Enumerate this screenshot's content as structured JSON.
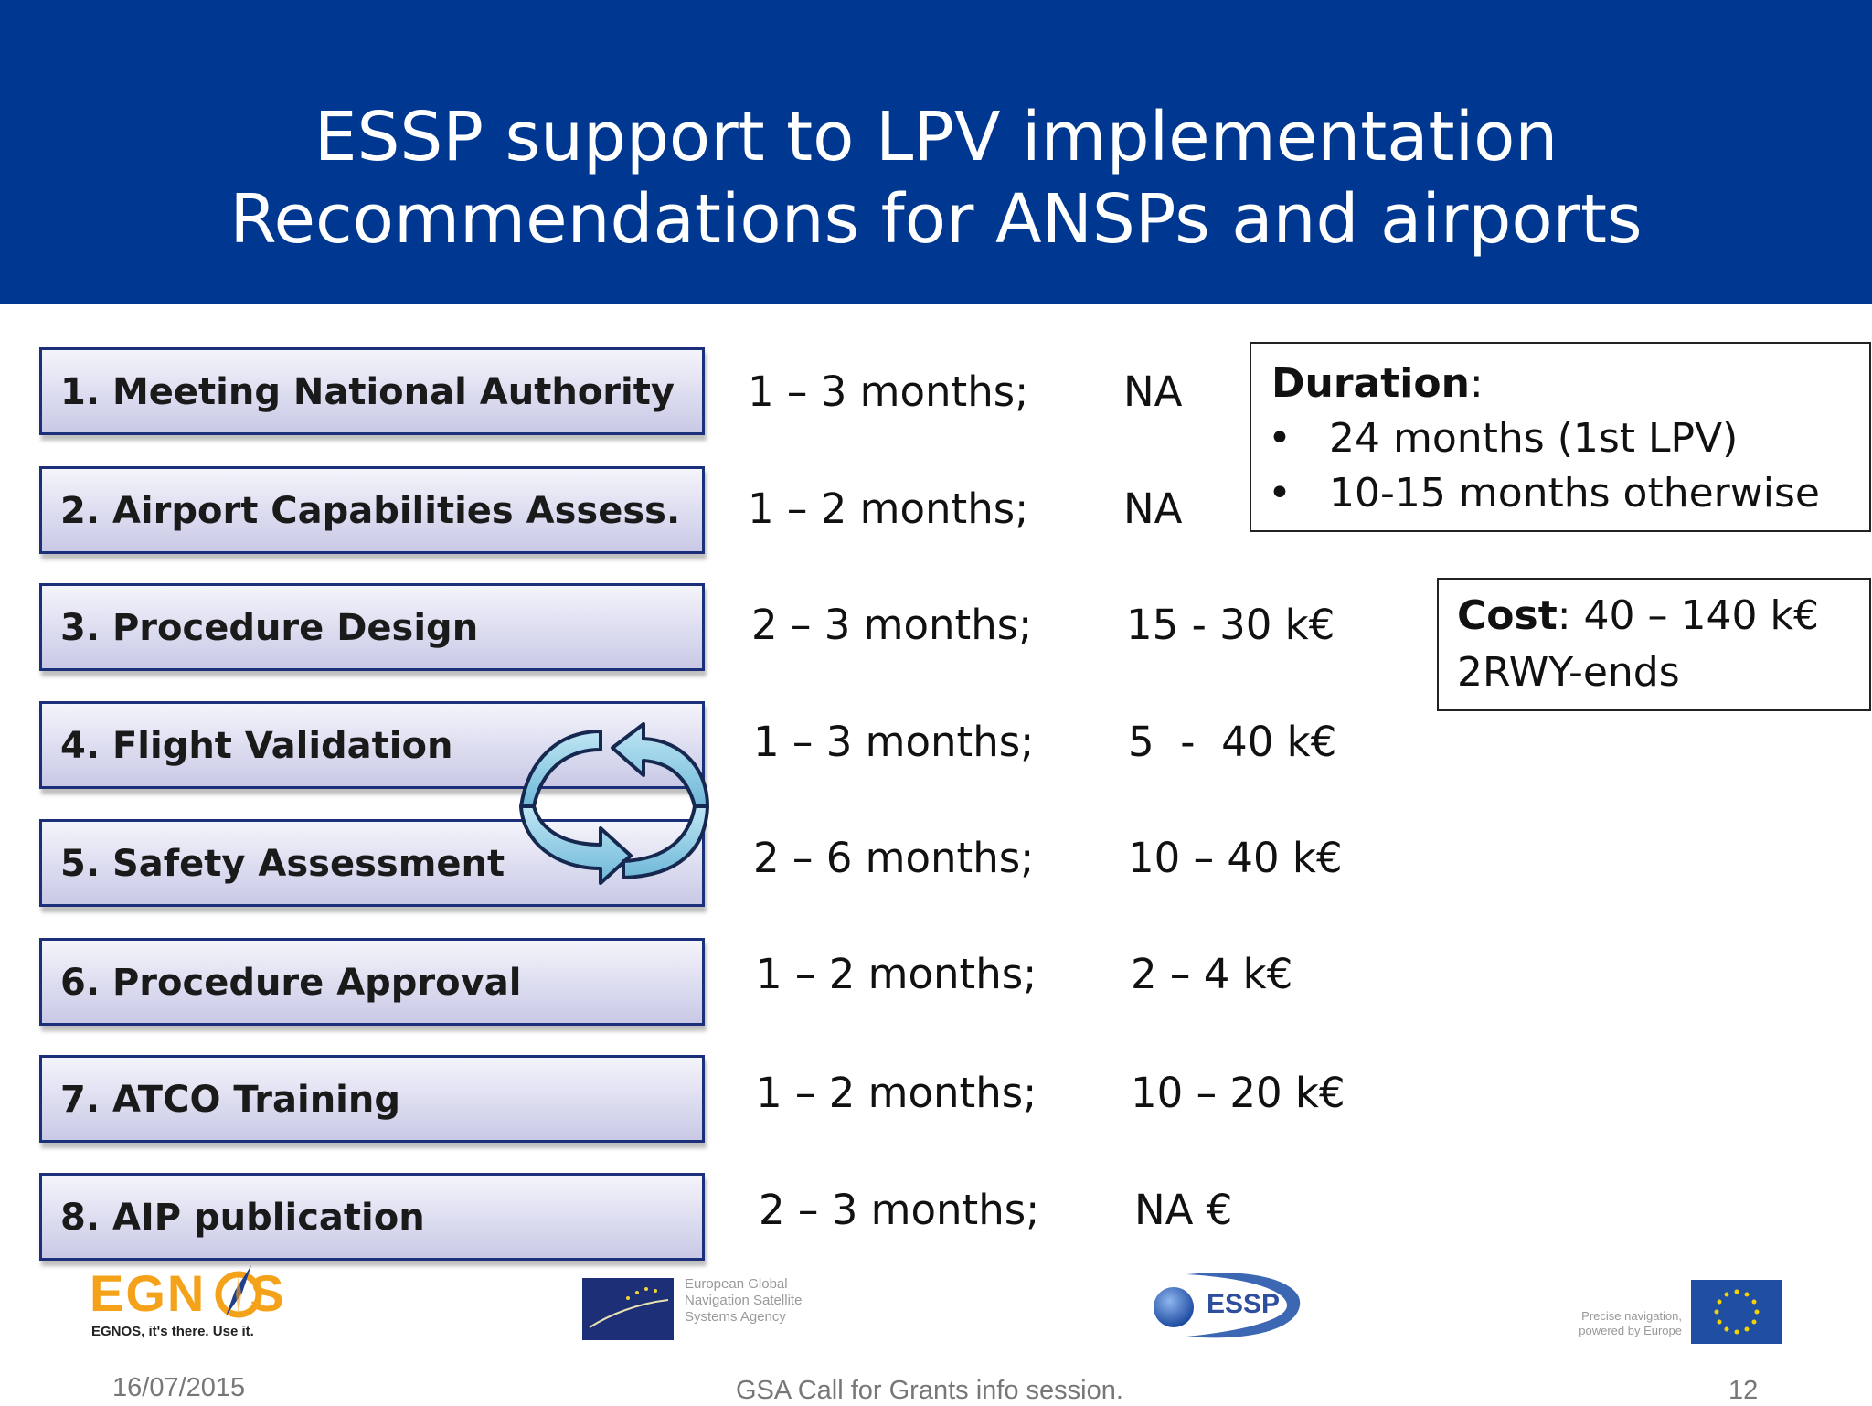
{
  "slide": {
    "title_line1": "ESSP support to LPV implementation",
    "title_line2": "Recommendations for ANSPs and airports"
  },
  "steps": [
    {
      "label": "1. Meeting National Authority",
      "duration": "1 – 3 months;",
      "cost": "NA"
    },
    {
      "label": "2. Airport Capabilities Assess.",
      "duration": "1 – 2 months;",
      "cost": "NA"
    },
    {
      "label": "3. Procedure Design",
      "duration": "2 – 3 months;",
      "cost": "15 - 30 k€"
    },
    {
      "label": "4. Flight Validation",
      "duration": "1 – 3 months;",
      "cost": "5  -  40 k€"
    },
    {
      "label": "5. Safety Assessment",
      "duration": "2 – 6 months;",
      "cost": "10 – 40 k€"
    },
    {
      "label": "6. Procedure Approval",
      "duration": "1 – 2 months;",
      "cost": "2 – 4 k€"
    },
    {
      "label": "7. ATCO Training",
      "duration": "1 – 2 months;",
      "cost": "10 – 20 k€"
    },
    {
      "label": "8. AIP publication",
      "duration": "2 – 3 months;",
      "cost": "NA €"
    }
  ],
  "duration_box": {
    "heading": "Duration",
    "items": [
      "24 months (1st LPV)",
      "10-15 months otherwise"
    ]
  },
  "cost_box": {
    "heading": "Cost",
    "value": ": 40 – 140 k€",
    "line2": "2RWY-ends"
  },
  "logos": {
    "egnos_name": "EGNOS",
    "egnos_tagline": "EGNOS, it's there. Use it.",
    "gsa_text": "European Global Navigation Satellite Systems Agency",
    "essp_name": "ESSP",
    "eu_tagline": "Precise navigation, powered by Europe"
  },
  "footer": {
    "date": "16/07/2015",
    "event": "GSA Call for Grants info session.",
    "page": "12"
  },
  "colors": {
    "header_bg": "#003891",
    "egnos_orange": "#f5a21b",
    "eu_blue": "#1f4ea3"
  }
}
